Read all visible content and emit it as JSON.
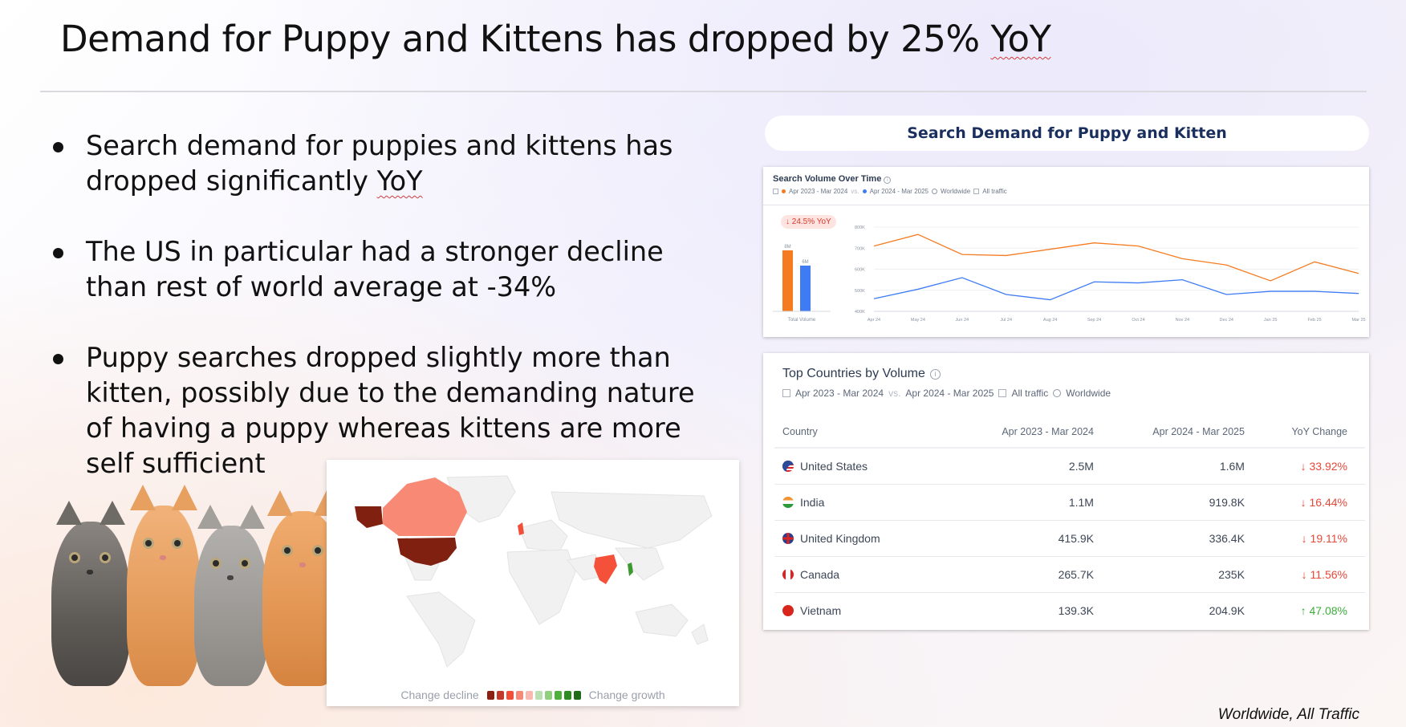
{
  "slide": {
    "title_main": "Demand for Puppy and Kittens has dropped by 25% ",
    "title_flagged": "YoY",
    "footnote": "Worldwide, All Traffic",
    "bullets": [
      {
        "text": "Search demand for puppies and kittens has dropped significantly ",
        "flagged": "YoY"
      },
      {
        "text": "The US in particular had a stronger decline than rest of world average at -34%",
        "flagged": ""
      },
      {
        "text": "Puppy searches dropped slightly more than kitten, possibly due to the demanding nature of having a puppy whereas kittens are more self sufficient",
        "flagged": ""
      }
    ]
  },
  "panel": {
    "header": "Search Demand for Puppy and Kitten"
  },
  "volume_card": {
    "title": "Search Volume Over Time",
    "period_a": "Apr 2023 - Mar 2024",
    "vs": "vs.",
    "period_b": "Apr 2024 - Mar 2025",
    "region": "Worldwide",
    "traffic": "All traffic",
    "yoy_badge": "↓ 24.5% YoY",
    "bar_axis_label": "Total Volume",
    "bars": [
      {
        "label": "8M",
        "value": 8,
        "color": "#f47b20"
      },
      {
        "label": "6M",
        "value": 6,
        "color": "#3f7cf4"
      }
    ]
  },
  "chart_data": {
    "type": "line",
    "title": "Search Volume Over Time",
    "x": [
      "Apr 24",
      "May 24",
      "Jun 24",
      "Jul 24",
      "Aug 24",
      "Sep 24",
      "Oct 24",
      "Nov 24",
      "Dec 24",
      "Jan 25",
      "Feb 25",
      "Mar 25"
    ],
    "series": [
      {
        "name": "Apr 2023 - Mar 2024",
        "color": "#f47b20",
        "values": [
          710000,
          765000,
          670000,
          665000,
          695000,
          725000,
          710000,
          650000,
          620000,
          545000,
          635000,
          580000
        ]
      },
      {
        "name": "Apr 2024 - Mar 2025",
        "color": "#3f7cf4",
        "values": [
          460000,
          505000,
          560000,
          480000,
          455000,
          540000,
          535000,
          550000,
          480000,
          495000,
          495000,
          485000
        ]
      }
    ],
    "yticks": [
      "400K",
      "500K",
      "600K",
      "700K",
      "800K"
    ],
    "ylim": [
      400000,
      800000
    ],
    "grid": true,
    "annotation": "↓ 24.5% YoY",
    "totals": {
      "categories": [
        "Apr 2023 - Mar 2024",
        "Apr 2024 - Mar 2025"
      ],
      "values": [
        8000000,
        6000000
      ],
      "labels": [
        "8M",
        "6M"
      ]
    }
  },
  "countries_card": {
    "title": "Top Countries by Volume",
    "period_a": "Apr 2023 - Mar 2024",
    "vs": "vs.",
    "period_b": "Apr 2024 - Mar 2025",
    "traffic": "All traffic",
    "region": "Worldwide",
    "columns": [
      "Country",
      "Apr 2023 - Mar 2024",
      "Apr 2024 - Mar 2025",
      "YoY Change"
    ],
    "rows": [
      {
        "country": "United States",
        "a": "2.5M",
        "b": "1.6M",
        "change": "↓ 33.92%",
        "dir": "down",
        "flag": "us"
      },
      {
        "country": "India",
        "a": "1.1M",
        "b": "919.8K",
        "change": "↓ 16.44%",
        "dir": "down",
        "flag": "in"
      },
      {
        "country": "United Kingdom",
        "a": "415.9K",
        "b": "336.4K",
        "change": "↓ 19.11%",
        "dir": "down",
        "flag": "uk"
      },
      {
        "country": "Canada",
        "a": "265.7K",
        "b": "235K",
        "change": "↓ 11.56%",
        "dir": "down",
        "flag": "ca"
      },
      {
        "country": "Vietnam",
        "a": "139.3K",
        "b": "204.9K",
        "change": "↑ 47.08%",
        "dir": "up",
        "flag": "vn"
      }
    ]
  },
  "map": {
    "legend_left": "Change decline",
    "legend_right": "Change growth",
    "scale_colors": [
      "#8b1f12",
      "#c0392b",
      "#f0503a",
      "#f58a78",
      "#f7b9b0",
      "#b9e0b0",
      "#8fcf7f",
      "#4fb03d",
      "#2e8a22",
      "#1f6b17"
    ],
    "highlight": {
      "us": "#7f2011",
      "alaska": "#7f2011",
      "canada": "#f88a75",
      "uk": "#f0503a",
      "india": "#f4503a",
      "vietnam": "#3a9a2e"
    }
  },
  "colors": {
    "accent_navy": "#1a2f5e",
    "decline_red": "#e5493a",
    "growth_green": "#3dae3b"
  }
}
